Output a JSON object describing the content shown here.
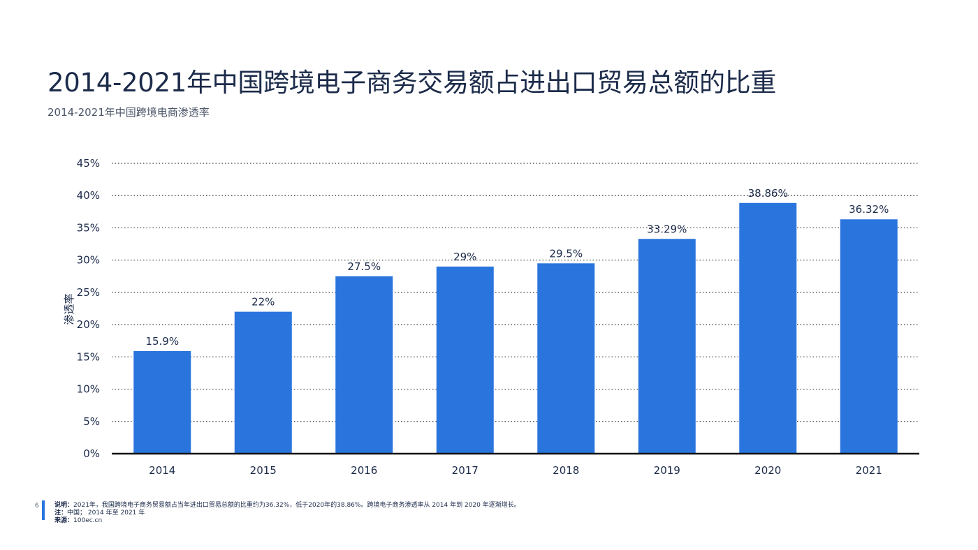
{
  "title": "2014-2021年中国跨境电子商务交易额占进出口贸易总额的比重",
  "subtitle": "2014-2021年中国跨境电商渗透率",
  "page_number": "6",
  "colors": {
    "bar": "#2a75dd",
    "text": "#1c2b4a",
    "grid": "#333333",
    "accent": "#2a75dd"
  },
  "chart_data": {
    "type": "bar",
    "categories": [
      "2014",
      "2015",
      "2016",
      "2017",
      "2018",
      "2019",
      "2020",
      "2021"
    ],
    "values": [
      15.9,
      22,
      27.5,
      29,
      29.5,
      33.29,
      38.86,
      36.32
    ],
    "data_labels": [
      "15.9%",
      "22%",
      "27.5%",
      "29%",
      "29.5%",
      "33.29%",
      "38.86%",
      "36.32%"
    ],
    "ylabel": "渗透率",
    "xlabel": "",
    "ylim": [
      0,
      45
    ],
    "yticks": [
      0,
      5,
      10,
      15,
      20,
      25,
      30,
      35,
      40,
      45
    ],
    "ytick_labels": [
      "0%",
      "5%",
      "10%",
      "15%",
      "20%",
      "25%",
      "30%",
      "35%",
      "40%",
      "45%"
    ],
    "grid": true,
    "grid_style": "dotted",
    "legend": "none"
  },
  "footer": {
    "note_label": "说明：",
    "note_text": "2021年，我国跨境电子商务贸易额占当年进出口贸易总额的比重约为36.32%，低于2020年的38.86%。跨境电子商务渗透率从 2014 年到 2020 年逐渐增长。",
    "remark_label": "注：",
    "remark_text": "中国； 2014 年至 2021 年",
    "source_label": "来源：",
    "source_text": "100ec.cn"
  }
}
